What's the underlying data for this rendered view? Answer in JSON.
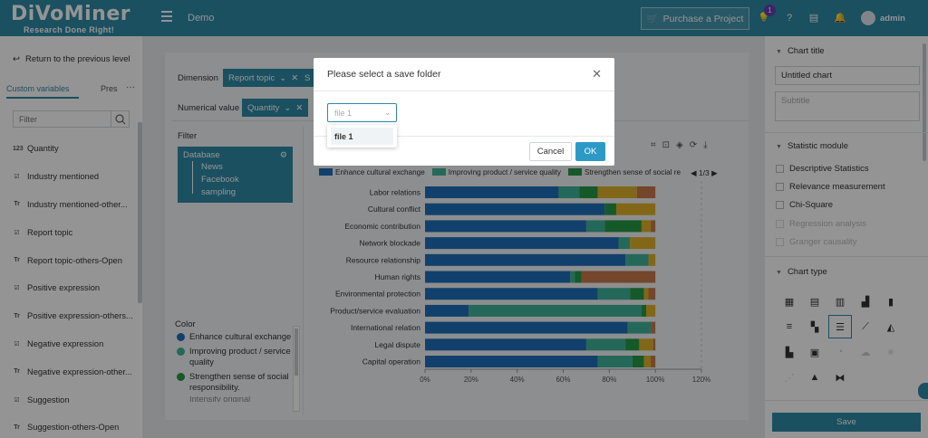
{
  "app": {
    "logo": "DiVoMiner",
    "slogan": "Research Done Right!",
    "project": "Demo",
    "purchase": "Purchase a Project",
    "notif_count": "1",
    "user": "admin"
  },
  "sidebar": {
    "back": "Return to the previous level",
    "tabs": [
      "Custom variables",
      "Pres"
    ],
    "more": "···",
    "filter_placeholder": "Filter",
    "items": [
      {
        "icon": "123",
        "label": "Quantity"
      },
      {
        "icon": "☑",
        "label": "Industry mentioned"
      },
      {
        "icon": "Tr",
        "label": "Industry mentioned-other..."
      },
      {
        "icon": "☑",
        "label": "Report topic"
      },
      {
        "icon": "Tr",
        "label": "Report topic-others-Open"
      },
      {
        "icon": "☑",
        "label": "Positive expression"
      },
      {
        "icon": "Tr",
        "label": "Positive expression-others..."
      },
      {
        "icon": "☑",
        "label": "Negative expression"
      },
      {
        "icon": "Tr",
        "label": "Negative expression-other..."
      },
      {
        "icon": "☑",
        "label": "Suggestion"
      },
      {
        "icon": "Tr",
        "label": "Suggestion-others-Open"
      }
    ]
  },
  "main": {
    "dimension_label": "Dimension",
    "dimension_chip": "Report topic",
    "dimension_chip2": "S",
    "numerical_label": "Numerical value",
    "numerical_chip": "Quantity",
    "filter_label": "Filter",
    "database": {
      "title": "Database",
      "items": [
        "News",
        "Facebook",
        "sampling"
      ]
    },
    "color_label": "Color",
    "color_legend": [
      {
        "name": "Enhance cultural exchange",
        "color": "#1f6fba"
      },
      {
        "name": "Improving product / service quality",
        "color": "#3fb39b"
      },
      {
        "name": "Strengthen sense of social responsibility.",
        "color": "#279a47"
      }
    ],
    "color_legend_cut": "Intensify original development",
    "pager": "1/3"
  },
  "chart_data": {
    "type": "bar",
    "orientation": "horizontal",
    "stacked": true,
    "normalized": true,
    "categories": [
      "Labor relations",
      "Cultural conflict",
      "Economic contribution",
      "Network blockade",
      "Resource relationship",
      "Human rights",
      "Environmental protection",
      "Product/service evaluation",
      "International relation",
      "Legal dispute",
      "Capital operation"
    ],
    "series": [
      {
        "name": "Enhance cultural exchange",
        "color": "#1f6fba",
        "values": [
          58,
          78,
          70,
          84,
          87,
          63,
          75,
          19,
          88,
          70,
          75
        ]
      },
      {
        "name": "Improving product / service quality",
        "color": "#3fb39b",
        "values": [
          9,
          0,
          8,
          5,
          10,
          2,
          14,
          75,
          10,
          17,
          15
        ]
      },
      {
        "name": "Strengthen sense of social responsibility.",
        "color": "#279a47",
        "values": [
          8,
          5,
          16,
          0,
          0,
          3,
          6,
          2,
          0,
          6,
          5
        ]
      },
      {
        "name": "",
        "color": "#e0b12a",
        "values": [
          17,
          17,
          4,
          11,
          3,
          0,
          2,
          4,
          0,
          6,
          3
        ]
      },
      {
        "name": "",
        "color": "#c8794a",
        "values": [
          8,
          0,
          2,
          0,
          0,
          32,
          3,
          0,
          2,
          1,
          2
        ]
      }
    ],
    "xlim": [
      0,
      120
    ],
    "xticks": [
      "0%",
      "20%",
      "40%",
      "60%",
      "80%",
      "100%",
      "120%"
    ],
    "legend": [
      "Enhance cultural exchange",
      "Improving product / service quality",
      "Strengthen sense of social re"
    ]
  },
  "right": {
    "chart_title_label": "Chart title",
    "chart_title_value": "Untitled chart",
    "subtitle_placeholder": "Subtitle",
    "statistic_label": "Statistic module",
    "stats": [
      "Descriptive Statistics",
      "Relevance measurement",
      "Chi-Square",
      "Regression analysis",
      "Granger causality"
    ],
    "chart_type_label": "Chart type",
    "save": "Save"
  },
  "modal": {
    "title": "Please select a save folder",
    "select_value": "file 1",
    "option": "file 1",
    "cancel": "Cancel",
    "ok": "OK"
  },
  "colors": {
    "primary": "#2d8aa6",
    "ok": "#2d9ac6"
  }
}
